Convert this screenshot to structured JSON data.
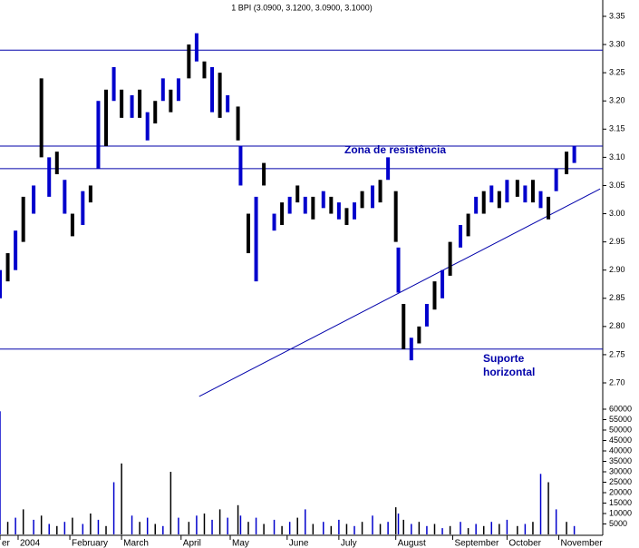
{
  "chart_data": [
    {
      "type": "hilo",
      "title": "1 BPI (3.0900, 3.1200, 3.0900, 3.1000)",
      "x": [
        0,
        3,
        6,
        9,
        13,
        16,
        19,
        22,
        25,
        28,
        32,
        35,
        38,
        41,
        44,
        47,
        51,
        54,
        57,
        60,
        63,
        66,
        69,
        73,
        76,
        79,
        82,
        85,
        88,
        92,
        93,
        96,
        99,
        102,
        106,
        109,
        112,
        115,
        118,
        121,
        125,
        128,
        131,
        134,
        137,
        140,
        144,
        147,
        150,
        153,
        154,
        156,
        159,
        162,
        165,
        168,
        171,
        174,
        178,
        181,
        184,
        187,
        190,
        193,
        196,
        200,
        203,
        206,
        209,
        212,
        215,
        219,
        222
      ],
      "series": [
        {
          "name": "low",
          "color": "#0000cc",
          "values": [
            2.85,
            2.88,
            2.9,
            2.95,
            3.0,
            3.1,
            3.03,
            3.07,
            3.0,
            2.96,
            2.98,
            3.02,
            3.08,
            3.12,
            3.2,
            3.17,
            3.17,
            3.17,
            3.13,
            3.16,
            3.2,
            3.18,
            3.2,
            3.24,
            3.27,
            3.24,
            3.18,
            3.17,
            3.18,
            3.13,
            3.05,
            2.93,
            2.88,
            3.05,
            2.97,
            2.98,
            3.0,
            3.02,
            3.0,
            2.99,
            3.01,
            3.0,
            2.99,
            2.98,
            2.99,
            3.01,
            3.01,
            3.02,
            3.06,
            2.95,
            2.86,
            2.76,
            2.74,
            2.77,
            2.8,
            2.83,
            2.85,
            2.89,
            2.94,
            2.96,
            3.0,
            3.0,
            3.02,
            3.01,
            3.02,
            3.03,
            3.02,
            3.02,
            3.01,
            2.99,
            3.04,
            3.07,
            3.09
          ]
        },
        {
          "name": "high",
          "color": "#0000cc",
          "values": [
            2.9,
            2.93,
            2.97,
            3.03,
            3.05,
            3.24,
            3.1,
            3.11,
            3.06,
            3.0,
            3.04,
            3.05,
            3.2,
            3.22,
            3.26,
            3.22,
            3.21,
            3.22,
            3.18,
            3.2,
            3.24,
            3.22,
            3.24,
            3.3,
            3.32,
            3.27,
            3.26,
            3.25,
            3.21,
            3.19,
            3.12,
            3.0,
            3.03,
            3.09,
            3.0,
            3.02,
            3.03,
            3.05,
            3.03,
            3.03,
            3.04,
            3.03,
            3.02,
            3.01,
            3.02,
            3.04,
            3.05,
            3.06,
            3.1,
            3.04,
            2.94,
            2.84,
            2.78,
            2.8,
            2.84,
            2.88,
            2.9,
            2.95,
            2.98,
            3.0,
            3.03,
            3.04,
            3.05,
            3.04,
            3.06,
            3.06,
            3.05,
            3.06,
            3.04,
            3.03,
            3.08,
            3.11,
            3.12
          ]
        }
      ],
      "xlim": [
        0,
        233
      ],
      "xticks": [
        {
          "value": 0,
          "label": "er"
        },
        {
          "value": 7,
          "label": "2004"
        },
        {
          "value": 27,
          "label": "February"
        },
        {
          "value": 47,
          "label": "March"
        },
        {
          "value": 70,
          "label": "April"
        },
        {
          "value": 89,
          "label": "May"
        },
        {
          "value": 111,
          "label": "June"
        },
        {
          "value": 131,
          "label": "July"
        },
        {
          "value": 153,
          "label": "August"
        },
        {
          "value": 175,
          "label": "September"
        },
        {
          "value": 196,
          "label": "October"
        },
        {
          "value": 216,
          "label": "November"
        }
      ],
      "ylim": [
        2.7,
        3.35
      ],
      "yticks": [
        3.35,
        {
          "value": 3.3,
          "label": "3.30"
        },
        3.25,
        {
          "value": 3.2,
          "label": "3.20"
        },
        3.15,
        {
          "value": 3.1,
          "label": "3.10"
        },
        3.05,
        {
          "value": 3.0,
          "label": "3.00"
        },
        2.95,
        {
          "value": 2.9,
          "label": "2.90"
        },
        2.85,
        {
          "value": 2.8,
          "label": "2.80"
        },
        2.75,
        {
          "value": 2.7,
          "label": "2.70"
        }
      ],
      "reference_lines": [
        3.29,
        3.12,
        3.08,
        2.76
      ],
      "trendline": {
        "x": [
          77,
          232
        ],
        "y": [
          2.676,
          3.044
        ]
      },
      "annotations": [
        "Zona de resistência",
        "Suporte",
        "horizontal"
      ]
    },
    {
      "type": "bar",
      "color": "#0000cc",
      "values": [
        59000,
        6000,
        8000,
        12000,
        7000,
        9000,
        5000,
        4000,
        6000,
        8000,
        5000,
        10000,
        7000,
        4000,
        25000,
        34000,
        9000,
        6000,
        8000,
        5000,
        4000,
        30000,
        8000,
        6000,
        9000,
        10000,
        7000,
        12000,
        8000,
        14000,
        9000,
        6000,
        8000,
        5000,
        7000,
        4000,
        6000,
        8000,
        12000,
        5000,
        6000,
        4000,
        7000,
        5000,
        4000,
        6000,
        9000,
        5000,
        6000,
        13000,
        10000,
        7000,
        5000,
        6000,
        4000,
        5000,
        3000,
        4000,
        6000,
        3000,
        5000,
        4000,
        6000,
        5000,
        7000,
        4000,
        5000,
        6000,
        29000,
        25000,
        12000,
        6000,
        4000
      ],
      "ylim": [
        0,
        60000
      ],
      "yticks": [
        60000,
        55000,
        50000,
        45000,
        40000,
        35000,
        30000,
        25000,
        20000,
        15000,
        10000,
        5000
      ]
    }
  ]
}
